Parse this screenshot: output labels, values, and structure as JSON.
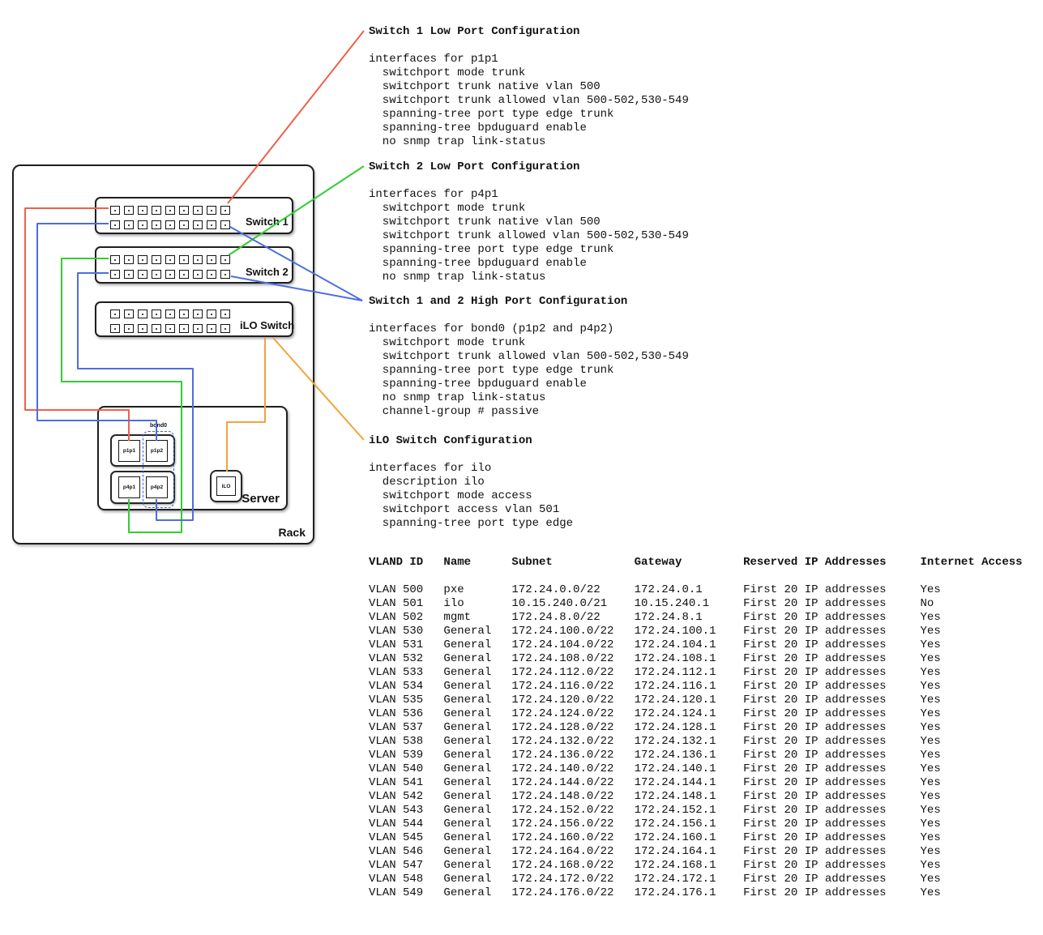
{
  "config_blocks": [
    {
      "title": "Switch 1 Low Port Configuration",
      "lines": [
        "interfaces for p1p1",
        "  switchport mode trunk",
        "  switchport trunk native vlan 500",
        "  switchport trunk allowed vlan 500-502,530-549",
        "  spanning-tree port type edge trunk",
        "  spanning-tree bpduguard enable",
        "  no snmp trap link-status"
      ]
    },
    {
      "title": "Switch 2 Low Port Configuration",
      "lines": [
        "interfaces for p4p1",
        "  switchport mode trunk",
        "  switchport trunk native vlan 500",
        "  switchport trunk allowed vlan 500-502,530-549",
        "  spanning-tree port type edge trunk",
        "  spanning-tree bpduguard enable",
        "  no snmp trap link-status"
      ]
    },
    {
      "title": "Switch 1 and 2 High Port Configuration",
      "lines": [
        "interfaces for bond0 (p1p2 and p4p2)",
        "  switchport mode trunk",
        "  switchport trunk allowed vlan 500-502,530-549",
        "  spanning-tree port type edge trunk",
        "  spanning-tree bpduguard enable",
        "  no snmp trap link-status",
        "  channel-group # passive"
      ]
    },
    {
      "title": "iLO Switch Configuration",
      "lines": [
        "interfaces for ilo",
        "  description ilo",
        "  switchport mode access",
        "  switchport access vlan 501",
        "  spanning-tree port type edge"
      ]
    }
  ],
  "vlan_table": {
    "headers": [
      "VLAND ID",
      "Name",
      "Subnet",
      "Gateway",
      "Reserved IP Addresses",
      "Internet Access"
    ],
    "rows": [
      [
        "VLAN 500",
        "pxe",
        "172.24.0.0/22",
        "172.24.0.1",
        "First 20 IP addresses",
        "Yes"
      ],
      [
        "VLAN 501",
        "ilo",
        "10.15.240.0/21",
        "10.15.240.1",
        "First 20 IP addresses",
        "No"
      ],
      [
        "VLAN 502",
        "mgmt",
        "172.24.8.0/22",
        "172.24.8.1",
        "First 20 IP addresses",
        "Yes"
      ],
      [
        "VLAN 530",
        "General",
        "172.24.100.0/22",
        "172.24.100.1",
        "First 20 IP addresses",
        "Yes"
      ],
      [
        "VLAN 531",
        "General",
        "172.24.104.0/22",
        "172.24.104.1",
        "First 20 IP addresses",
        "Yes"
      ],
      [
        "VLAN 532",
        "General",
        "172.24.108.0/22",
        "172.24.108.1",
        "First 20 IP addresses",
        "Yes"
      ],
      [
        "VLAN 533",
        "General",
        "172.24.112.0/22",
        "172.24.112.1",
        "First 20 IP addresses",
        "Yes"
      ],
      [
        "VLAN 534",
        "General",
        "172.24.116.0/22",
        "172.24.116.1",
        "First 20 IP addresses",
        "Yes"
      ],
      [
        "VLAN 535",
        "General",
        "172.24.120.0/22",
        "172.24.120.1",
        "First 20 IP addresses",
        "Yes"
      ],
      [
        "VLAN 536",
        "General",
        "172.24.124.0/22",
        "172.24.124.1",
        "First 20 IP addresses",
        "Yes"
      ],
      [
        "VLAN 537",
        "General",
        "172.24.128.0/22",
        "172.24.128.1",
        "First 20 IP addresses",
        "Yes"
      ],
      [
        "VLAN 538",
        "General",
        "172.24.132.0/22",
        "172.24.132.1",
        "First 20 IP addresses",
        "Yes"
      ],
      [
        "VLAN 539",
        "General",
        "172.24.136.0/22",
        "172.24.136.1",
        "First 20 IP addresses",
        "Yes"
      ],
      [
        "VLAN 540",
        "General",
        "172.24.140.0/22",
        "172.24.140.1",
        "First 20 IP addresses",
        "Yes"
      ],
      [
        "VLAN 541",
        "General",
        "172.24.144.0/22",
        "172.24.144.1",
        "First 20 IP addresses",
        "Yes"
      ],
      [
        "VLAN 542",
        "General",
        "172.24.148.0/22",
        "172.24.148.1",
        "First 20 IP addresses",
        "Yes"
      ],
      [
        "VLAN 543",
        "General",
        "172.24.152.0/22",
        "172.24.152.1",
        "First 20 IP addresses",
        "Yes"
      ],
      [
        "VLAN 544",
        "General",
        "172.24.156.0/22",
        "172.24.156.1",
        "First 20 IP addresses",
        "Yes"
      ],
      [
        "VLAN 545",
        "General",
        "172.24.160.0/22",
        "172.24.160.1",
        "First 20 IP addresses",
        "Yes"
      ],
      [
        "VLAN 546",
        "General",
        "172.24.164.0/22",
        "172.24.164.1",
        "First 20 IP addresses",
        "Yes"
      ],
      [
        "VLAN 547",
        "General",
        "172.24.168.0/22",
        "172.24.168.1",
        "First 20 IP addresses",
        "Yes"
      ],
      [
        "VLAN 548",
        "General",
        "172.24.172.0/22",
        "172.24.172.1",
        "First 20 IP addresses",
        "Yes"
      ],
      [
        "VLAN 549",
        "General",
        "172.24.176.0/22",
        "172.24.176.1",
        "First 20 IP addresses",
        "Yes"
      ]
    ]
  },
  "diagram": {
    "rack_label": "Rack",
    "server_label": "Server",
    "switch_labels": [
      "Switch 1",
      "Switch 2",
      "iLO Switch"
    ],
    "server_port_labels": [
      "p1p1",
      "p1p2",
      "p4p1",
      "p4p2"
    ],
    "ilo_port_label": "iLO",
    "bond_label": "bond0",
    "wire_colors": {
      "switch1_low": "#f0604a",
      "switch2_low": "#33cc33",
      "high_port": "#4d6ee0",
      "ilo_switch": "#f2a33c"
    }
  }
}
